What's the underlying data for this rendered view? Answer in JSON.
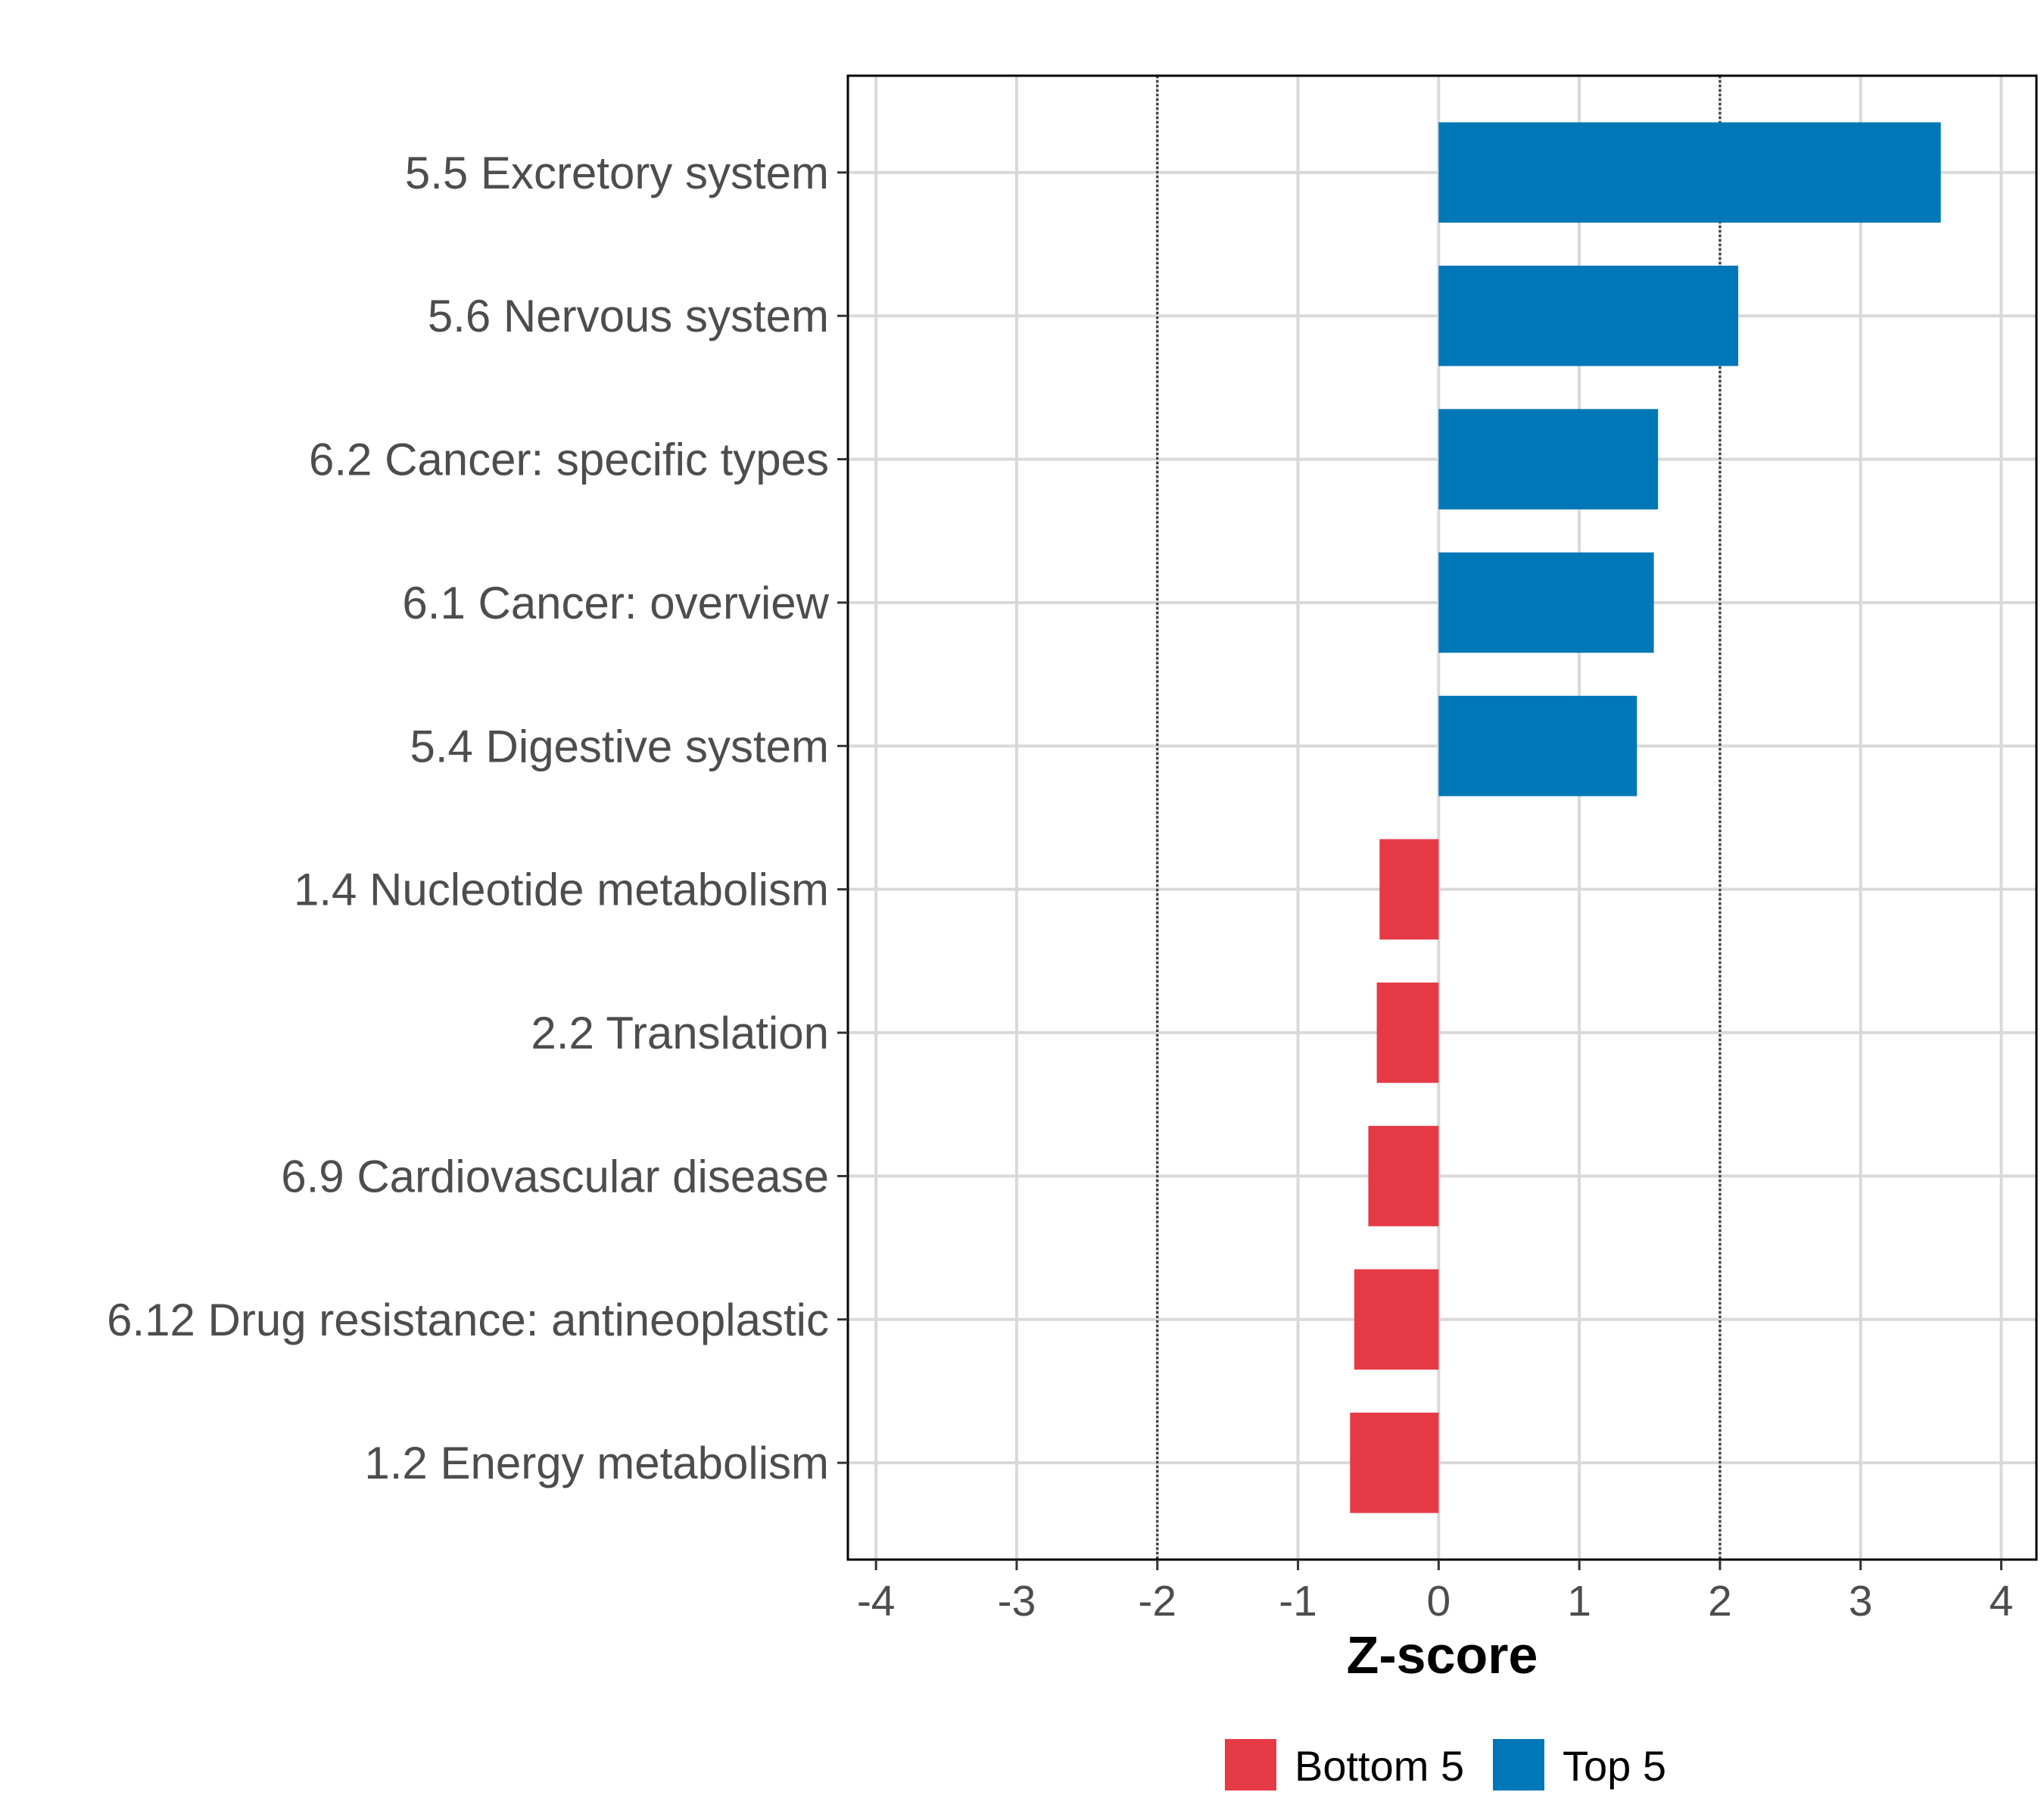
{
  "chart_data": {
    "type": "bar",
    "orientation": "horizontal",
    "categories": [
      "5.5 Excretory system",
      "5.6 Nervous system",
      "6.2 Cancer: specific types",
      "6.1 Cancer: overview",
      "5.4 Digestive system",
      "1.4 Nucleotide metabolism",
      "2.2 Translation",
      "6.9 Cardiovascular disease",
      "6.12 Drug resistance: antineoplastic",
      "1.2 Energy metabolism"
    ],
    "values": [
      3.57,
      2.13,
      1.56,
      1.53,
      1.41,
      -0.42,
      -0.44,
      -0.5,
      -0.6,
      -0.63
    ],
    "groups": [
      "Top 5",
      "Top 5",
      "Top 5",
      "Top 5",
      "Top 5",
      "Bottom 5",
      "Bottom 5",
      "Bottom 5",
      "Bottom 5",
      "Bottom 5"
    ],
    "xlabel": "Z-score",
    "ylabel": "",
    "xlim": [
      -4.2,
      4.25
    ],
    "x_ticks": [
      -4,
      -3,
      -2,
      -1,
      0,
      1,
      2,
      3,
      4
    ],
    "x_tick_labels": [
      "-4",
      "-3",
      "-2",
      "-1",
      "0",
      "1",
      "2",
      "3",
      "4"
    ],
    "reference_lines": [
      -2,
      2
    ],
    "grid": true,
    "legend": {
      "position": "bottom",
      "entries": [
        {
          "name": "Bottom 5",
          "color": "#e63946"
        },
        {
          "name": "Top 5",
          "color": "#0077b6"
        }
      ]
    }
  }
}
